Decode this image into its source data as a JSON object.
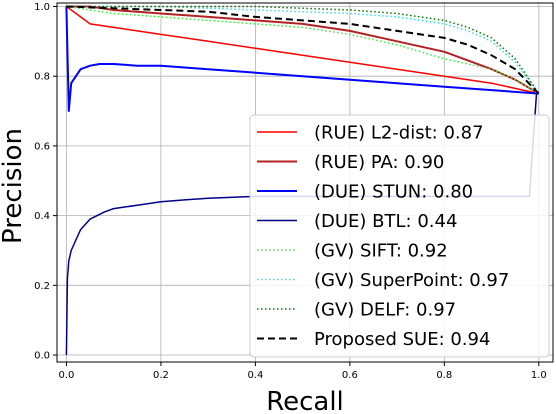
{
  "chart_data": {
    "type": "line",
    "title": "",
    "xlabel": "Recall",
    "ylabel": "Precision",
    "xlim": [
      -0.02,
      1.03
    ],
    "ylim": [
      -0.02,
      1.01
    ],
    "grid": true,
    "legend_placement": "lower-right",
    "x_ticks": [
      0.0,
      0.2,
      0.4,
      0.6,
      0.8,
      1.0
    ],
    "x_tick_labels": [
      "0.0",
      "0.2",
      "0.4",
      "0.6",
      "0.8",
      "1.0"
    ],
    "y_ticks": [
      0.0,
      0.2,
      0.4,
      0.6,
      0.8,
      1.0
    ],
    "y_tick_labels": [
      "0.0",
      "0.2",
      "0.4",
      "0.6",
      "0.8",
      "1.0"
    ],
    "series": [
      {
        "name": "(RUE) L2-dist: 0.87",
        "color": "#ff0000",
        "style": "solid",
        "width": 1.5,
        "x": [
          0.0,
          0.01,
          0.03,
          0.05,
          0.1,
          0.15,
          0.2,
          0.3,
          0.4,
          0.5,
          0.6,
          0.7,
          0.8,
          0.9,
          1.0
        ],
        "y": [
          1.0,
          0.99,
          0.97,
          0.95,
          0.94,
          0.93,
          0.92,
          0.9,
          0.88,
          0.86,
          0.84,
          0.82,
          0.8,
          0.78,
          0.75
        ]
      },
      {
        "name": "(RUE) PA: 0.90",
        "color": "#b22222",
        "style": "solid",
        "width": 2,
        "x": [
          0.0,
          0.05,
          0.1,
          0.2,
          0.3,
          0.4,
          0.5,
          0.6,
          0.7,
          0.8,
          0.9,
          0.95,
          1.0
        ],
        "y": [
          1.0,
          1.0,
          0.99,
          0.98,
          0.97,
          0.96,
          0.95,
          0.93,
          0.9,
          0.87,
          0.82,
          0.79,
          0.75
        ]
      },
      {
        "name": "(DUE) STUN: 0.80",
        "color": "#0000ff",
        "style": "solid",
        "width": 2,
        "x": [
          0.0,
          0.005,
          0.01,
          0.02,
          0.03,
          0.05,
          0.07,
          0.1,
          0.15,
          0.2,
          0.3,
          0.4,
          0.5,
          0.6,
          0.7,
          0.8,
          0.9,
          1.0
        ],
        "y": [
          1.0,
          0.7,
          0.78,
          0.8,
          0.82,
          0.83,
          0.835,
          0.835,
          0.83,
          0.83,
          0.82,
          0.81,
          0.8,
          0.79,
          0.78,
          0.77,
          0.76,
          0.75
        ]
      },
      {
        "name": "(DUE) BTL: 0.44",
        "color": "#00008b",
        "style": "solid",
        "width": 1.5,
        "x": [
          0.0,
          0.002,
          0.005,
          0.01,
          0.02,
          0.03,
          0.05,
          0.08,
          0.1,
          0.15,
          0.2,
          0.25,
          0.3,
          0.4,
          0.5,
          0.6,
          0.7,
          0.8,
          0.9,
          0.98,
          0.995,
          1.0
        ],
        "y": [
          0.0,
          0.22,
          0.27,
          0.3,
          0.33,
          0.36,
          0.39,
          0.41,
          0.42,
          0.43,
          0.44,
          0.445,
          0.45,
          0.455,
          0.455,
          0.455,
          0.455,
          0.455,
          0.455,
          0.455,
          0.75,
          0.75
        ]
      },
      {
        "name": "(GV) SIFT: 0.92",
        "color": "#33ee33",
        "style": "dotted",
        "width": 1.5,
        "x": [
          0.0,
          0.1,
          0.2,
          0.3,
          0.4,
          0.5,
          0.6,
          0.7,
          0.8,
          0.9,
          0.95,
          1.0
        ],
        "y": [
          1.0,
          0.98,
          0.97,
          0.96,
          0.95,
          0.94,
          0.92,
          0.89,
          0.85,
          0.82,
          0.79,
          0.75
        ]
      },
      {
        "name": "(GV) SuperPoint: 0.97",
        "color": "#33dddd",
        "style": "dotted",
        "width": 1.5,
        "x": [
          0.0,
          0.2,
          0.4,
          0.6,
          0.7,
          0.8,
          0.85,
          0.9,
          0.95,
          1.0
        ],
        "y": [
          1.0,
          1.0,
          0.99,
          0.98,
          0.97,
          0.95,
          0.93,
          0.9,
          0.84,
          0.75
        ]
      },
      {
        "name": "(GV) DELF: 0.97",
        "color": "#007700",
        "style": "dotted",
        "width": 1.5,
        "x": [
          0.0,
          0.2,
          0.4,
          0.6,
          0.7,
          0.8,
          0.85,
          0.9,
          0.95,
          1.0
        ],
        "y": [
          1.0,
          1.0,
          1.0,
          0.99,
          0.98,
          0.96,
          0.94,
          0.91,
          0.85,
          0.75
        ]
      },
      {
        "name": "Proposed SUE: 0.94",
        "color": "#000000",
        "style": "dashed",
        "width": 2,
        "x": [
          0.0,
          0.2,
          0.3,
          0.4,
          0.5,
          0.6,
          0.7,
          0.8,
          0.85,
          0.9,
          0.95,
          1.0
        ],
        "y": [
          1.0,
          0.99,
          0.985,
          0.97,
          0.96,
          0.95,
          0.93,
          0.91,
          0.89,
          0.86,
          0.82,
          0.75
        ]
      }
    ]
  }
}
